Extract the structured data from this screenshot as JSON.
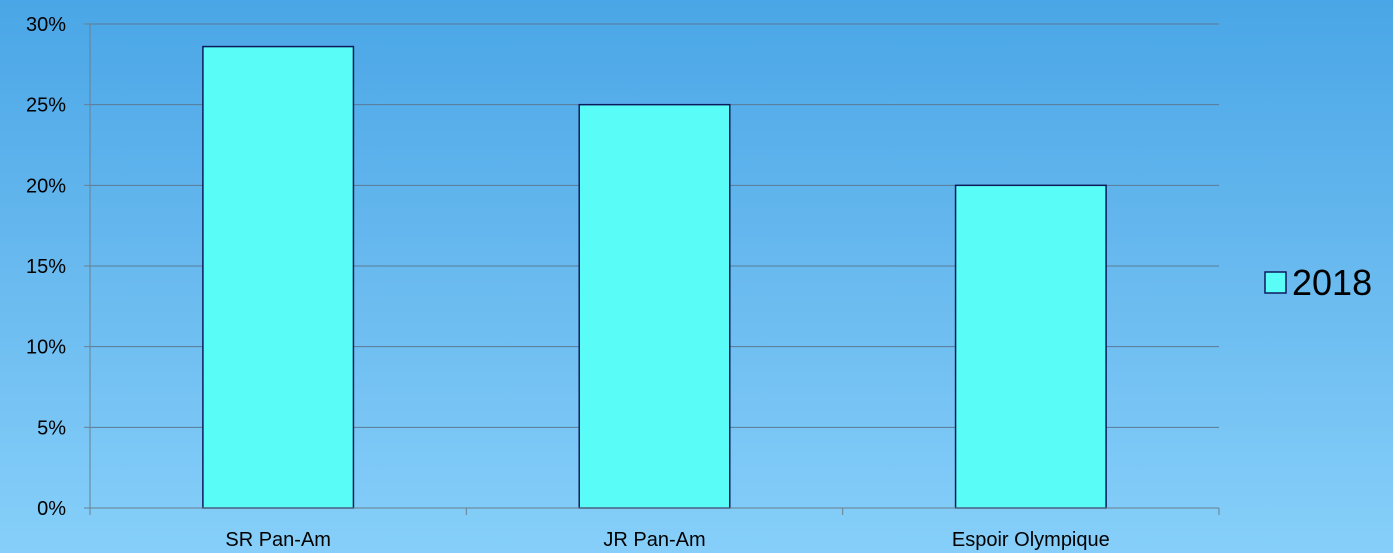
{
  "chart_data": {
    "type": "bar",
    "categories": [
      "SR Pan-Am",
      "JR Pan-Am",
      "Espoir Olympique"
    ],
    "series": [
      {
        "name": "2018",
        "values": [
          28.6,
          25.0,
          20.0
        ]
      }
    ],
    "ylim": [
      0,
      30
    ],
    "yticks": [
      "0%",
      "5%",
      "10%",
      "15%",
      "20%",
      "25%",
      "30%"
    ],
    "grid": true,
    "legend_position": "right",
    "colors": {
      "bar_fill": "#5afcf8",
      "bar_stroke": "#0d1b5c",
      "grid": "#5a7a95",
      "axis": "#6b7f90",
      "text": "#000000"
    }
  }
}
